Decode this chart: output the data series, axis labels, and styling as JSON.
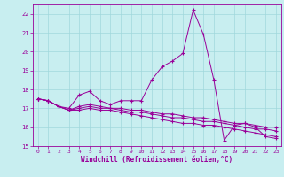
{
  "xlabel": "Windchill (Refroidissement éolien,°C)",
  "background_color": "#c8eef0",
  "grid_color": "#a0d8dc",
  "line_color": "#990099",
  "xlim": [
    -0.5,
    23.5
  ],
  "ylim": [
    15.0,
    22.5
  ],
  "yticks": [
    15,
    16,
    17,
    18,
    19,
    20,
    21,
    22
  ],
  "xticks": [
    0,
    1,
    2,
    3,
    4,
    5,
    6,
    7,
    8,
    9,
    10,
    11,
    12,
    13,
    14,
    15,
    16,
    17,
    18,
    19,
    20,
    21,
    22,
    23
  ],
  "series": [
    [
      17.5,
      17.4,
      17.1,
      17.0,
      17.7,
      17.9,
      17.4,
      17.2,
      17.4,
      17.4,
      17.4,
      18.5,
      19.2,
      19.5,
      19.9,
      22.2,
      20.9,
      18.5,
      15.3,
      16.1,
      16.2,
      16.0,
      15.5,
      15.4
    ],
    [
      17.5,
      17.4,
      17.1,
      16.9,
      16.9,
      17.0,
      16.9,
      16.9,
      16.8,
      16.7,
      16.6,
      16.5,
      16.4,
      16.3,
      16.2,
      16.2,
      16.1,
      16.1,
      16.0,
      15.9,
      15.8,
      15.7,
      15.6,
      15.5
    ],
    [
      17.5,
      17.4,
      17.1,
      16.9,
      17.0,
      17.1,
      17.0,
      17.0,
      16.9,
      16.8,
      16.8,
      16.7,
      16.6,
      16.5,
      16.5,
      16.4,
      16.3,
      16.3,
      16.2,
      16.1,
      16.0,
      15.9,
      15.9,
      15.8
    ],
    [
      17.5,
      17.4,
      17.1,
      16.9,
      17.1,
      17.2,
      17.1,
      17.0,
      17.0,
      16.9,
      16.9,
      16.8,
      16.7,
      16.7,
      16.6,
      16.5,
      16.5,
      16.4,
      16.3,
      16.2,
      16.2,
      16.1,
      16.0,
      16.0
    ]
  ]
}
